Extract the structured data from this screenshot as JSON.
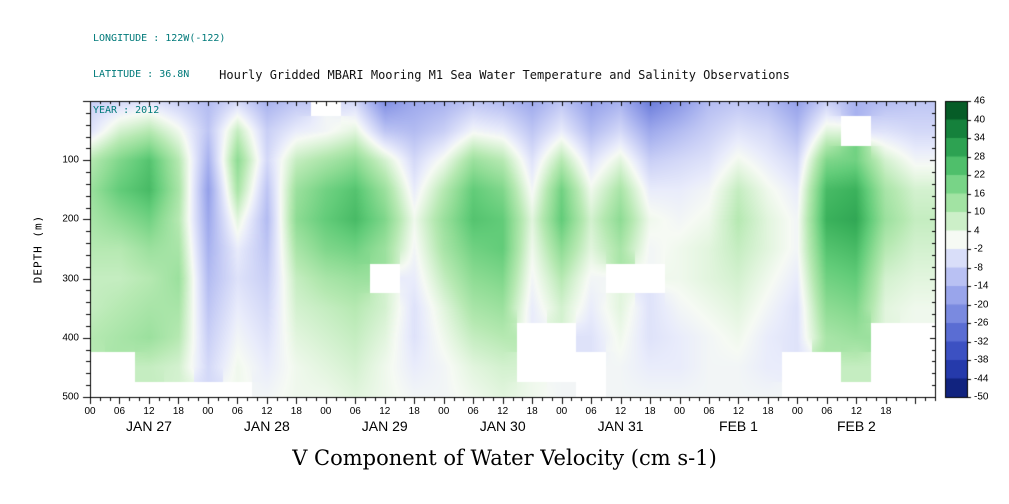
{
  "header": {
    "longitude": "LONGITUDE : 122W(-122)",
    "latitude": "LATITUDE : 36.8N",
    "year": "YEAR : 2012"
  },
  "title": "Hourly Gridded MBARI Mooring M1 Sea Water Temperature and Salinity Observations",
  "colors": {
    "header_text": "#007a7a",
    "axis": "#000000",
    "background": "#ffffff",
    "missing": "#ffffff"
  },
  "chart_data": {
    "type": "heatmap",
    "title": "V Component of Water Velocity (cm s-1)",
    "ylabel": "DEPTH (m)",
    "y_ticks": [
      100,
      200,
      300,
      400,
      500
    ],
    "y_minor_step_m": 20,
    "x_minor_step_hours": 2,
    "depth_range_m": [
      0,
      500
    ],
    "x_range_hours": [
      0,
      172
    ],
    "day_labels": [
      "JAN 27",
      "JAN 28",
      "JAN 29",
      "JAN 30",
      "JAN 31",
      "FEB 1",
      "FEB 2"
    ],
    "hour_labels": [
      "00",
      "06",
      "12",
      "18"
    ],
    "colorbar": {
      "ticks": [
        46,
        40,
        34,
        28,
        22,
        16,
        10,
        4,
        -2,
        -8,
        -14,
        -20,
        -26,
        -32,
        -38,
        -44,
        -50
      ]
    },
    "colormap": [
      {
        "value": -50,
        "color": "#071660"
      },
      {
        "value": -44,
        "color": "#1b2f9e"
      },
      {
        "value": -38,
        "color": "#2e44b8"
      },
      {
        "value": -32,
        "color": "#4a5ecb"
      },
      {
        "value": -26,
        "color": "#6a7cda"
      },
      {
        "value": -20,
        "color": "#8a97e6"
      },
      {
        "value": -14,
        "color": "#a8b2ef"
      },
      {
        "value": -8,
        "color": "#c9cff6"
      },
      {
        "value": -2,
        "color": "#e9ecfb"
      },
      {
        "value": 1,
        "color": "#f6faf4"
      },
      {
        "value": 4,
        "color": "#e2f5de"
      },
      {
        "value": 10,
        "color": "#b6e9b2"
      },
      {
        "value": 16,
        "color": "#8edc94"
      },
      {
        "value": 22,
        "color": "#62cc79"
      },
      {
        "value": 28,
        "color": "#3bb25c"
      },
      {
        "value": 34,
        "color": "#1e9147"
      },
      {
        "value": 40,
        "color": "#0b7031"
      },
      {
        "value": 46,
        "color": "#00471d"
      }
    ],
    "grid": {
      "hours": [
        0,
        6,
        12,
        18,
        24,
        30,
        36,
        42,
        48,
        54,
        60,
        66,
        72,
        78,
        84,
        90,
        96,
        102,
        108,
        114,
        120,
        126,
        132,
        138,
        144,
        150,
        156,
        162,
        168
      ],
      "depths": [
        0,
        50,
        100,
        150,
        200,
        250,
        300,
        350,
        400,
        450,
        500
      ],
      "values": [
        [
          -8,
          -6,
          -4,
          -8,
          -12,
          -6,
          -14,
          -10,
          null,
          -6,
          -22,
          -16,
          -14,
          -10,
          -12,
          -16,
          -10,
          -18,
          -14,
          -26,
          -20,
          -12,
          -10,
          -12,
          -18,
          -8,
          -14,
          -12,
          -10
        ],
        [
          -4,
          6,
          10,
          2,
          -10,
          8,
          -8,
          -2,
          0,
          4,
          -10,
          -12,
          -8,
          0,
          -2,
          -10,
          -2,
          -12,
          -6,
          -16,
          -12,
          -8,
          -4,
          -6,
          -12,
          4,
          null,
          -4,
          -6
        ],
        [
          10,
          18,
          24,
          10,
          -14,
          16,
          -6,
          8,
          12,
          16,
          6,
          -6,
          2,
          14,
          10,
          -4,
          10,
          -4,
          4,
          -8,
          -6,
          -4,
          2,
          -2,
          -6,
          18,
          20,
          6,
          0
        ],
        [
          14,
          22,
          26,
          12,
          -18,
          12,
          -10,
          14,
          20,
          24,
          14,
          -2,
          10,
          22,
          18,
          0,
          20,
          2,
          12,
          -2,
          -2,
          0,
          8,
          2,
          -2,
          26,
          28,
          12,
          6
        ],
        [
          12,
          16,
          20,
          10,
          -16,
          4,
          -12,
          16,
          22,
          26,
          18,
          2,
          14,
          24,
          22,
          4,
          22,
          6,
          16,
          2,
          0,
          2,
          10,
          4,
          0,
          28,
          30,
          14,
          8
        ],
        [
          10,
          10,
          14,
          12,
          -14,
          -2,
          -10,
          12,
          18,
          20,
          14,
          0,
          12,
          20,
          22,
          2,
          16,
          4,
          12,
          0,
          2,
          4,
          8,
          4,
          0,
          24,
          26,
          10,
          6
        ],
        [
          8,
          8,
          10,
          14,
          -12,
          -4,
          -8,
          8,
          12,
          14,
          null,
          -2,
          8,
          16,
          18,
          0,
          10,
          0,
          null,
          null,
          2,
          4,
          6,
          2,
          -2,
          20,
          22,
          6,
          4
        ],
        [
          8,
          10,
          12,
          12,
          -10,
          -2,
          -6,
          6,
          8,
          10,
          6,
          -4,
          4,
          12,
          14,
          -2,
          6,
          -2,
          4,
          -4,
          0,
          2,
          4,
          0,
          -4,
          16,
          18,
          4,
          2
        ],
        [
          10,
          12,
          14,
          10,
          -8,
          0,
          -4,
          4,
          6,
          8,
          4,
          -4,
          2,
          8,
          10,
          null,
          null,
          -4,
          2,
          -4,
          -2,
          0,
          2,
          -2,
          -4,
          12,
          14,
          null,
          null
        ],
        [
          null,
          null,
          8,
          6,
          -6,
          2,
          -2,
          2,
          4,
          6,
          2,
          -2,
          0,
          4,
          6,
          null,
          null,
          null,
          0,
          -2,
          -2,
          0,
          0,
          -2,
          null,
          null,
          8,
          null,
          null
        ],
        [
          null,
          null,
          null,
          null,
          null,
          null,
          0,
          2,
          2,
          4,
          2,
          0,
          0,
          2,
          4,
          2,
          0,
          null,
          0,
          0,
          0,
          0,
          0,
          0,
          null,
          null,
          null,
          null,
          null
        ]
      ]
    }
  }
}
